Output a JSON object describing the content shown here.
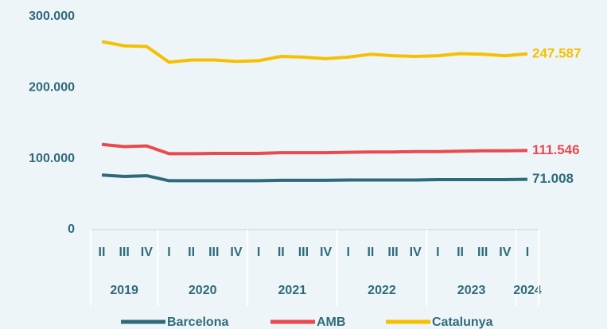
{
  "chart_data": {
    "type": "line",
    "categories": [
      "II",
      "III",
      "IV",
      "I",
      "II",
      "III",
      "IV",
      "I",
      "II",
      "III",
      "IV",
      "I",
      "II",
      "III",
      "IV",
      "I",
      "II",
      "III",
      "IV",
      "I"
    ],
    "groups": [
      {
        "label": "2019",
        "span": 3
      },
      {
        "label": "2020",
        "span": 4
      },
      {
        "label": "2021",
        "span": 4
      },
      {
        "label": "2022",
        "span": 4
      },
      {
        "label": "2023",
        "span": 4
      },
      {
        "label": "2024",
        "span": 1
      }
    ],
    "series": [
      {
        "name": "Barcelona",
        "color": "#2e6b7a",
        "values": [
          77000,
          75000,
          76000,
          69000,
          69000,
          69000,
          69000,
          69000,
          69500,
          69500,
          69500,
          70000,
          70000,
          70000,
          70000,
          70500,
          70500,
          70500,
          70500,
          71008
        ],
        "value_labels": [
          null,
          null,
          null,
          null,
          null,
          null,
          null,
          null,
          null,
          null,
          null,
          null,
          null,
          null,
          null,
          null,
          null,
          null,
          null,
          "71.008"
        ]
      },
      {
        "name": "AMB",
        "color": "#e84a4f",
        "values": [
          120000,
          117000,
          118000,
          107000,
          107000,
          107500,
          107500,
          107500,
          108500,
          108500,
          108500,
          109000,
          109500,
          109500,
          110000,
          110000,
          110500,
          111000,
          111000,
          111546
        ],
        "value_labels": [
          null,
          null,
          null,
          null,
          null,
          null,
          null,
          null,
          null,
          null,
          null,
          null,
          null,
          null,
          null,
          null,
          null,
          null,
          null,
          "111.546"
        ]
      },
      {
        "name": "Catalunya",
        "color": "#f5c000",
        "values": [
          265000,
          259000,
          258000,
          236000,
          239000,
          239000,
          237000,
          238000,
          244000,
          243000,
          241000,
          243000,
          247000,
          245000,
          244000,
          245000,
          248000,
          247000,
          245000,
          247587
        ],
        "value_labels": [
          null,
          null,
          null,
          null,
          null,
          null,
          null,
          null,
          null,
          null,
          null,
          null,
          null,
          null,
          null,
          null,
          null,
          null,
          null,
          "247.587"
        ]
      }
    ],
    "ylim": [
      0,
      300000
    ],
    "yticks": [
      0,
      {
        "value": 100000,
        "label": "100.000"
      },
      {
        "value": 200000,
        "label": "200.000"
      },
      {
        "value": 300000,
        "label": "300.000"
      }
    ],
    "grid": false,
    "legend": "bottom"
  }
}
